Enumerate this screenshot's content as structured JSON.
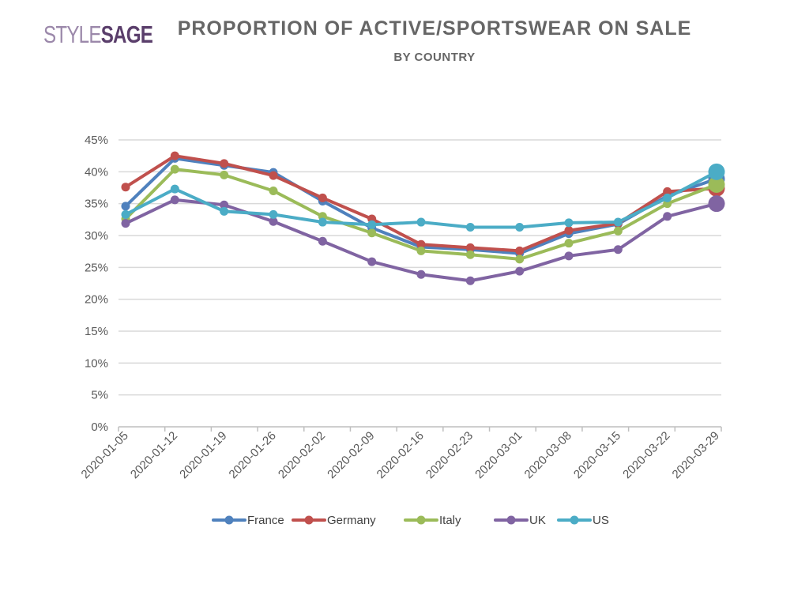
{
  "brand": {
    "logo_light": "STYLE",
    "logo_dark": "SAGE"
  },
  "header": {
    "title": "PROPORTION OF ACTIVE/SPORTSWEAR ON SALE",
    "subtitle": "BY COUNTRY"
  },
  "chart_data": {
    "type": "line",
    "title": "PROPORTION OF ACTIVE/SPORTSWEAR ON SALE",
    "subtitle": "BY COUNTRY",
    "xlabel": "",
    "ylabel": "",
    "ylim": [
      0,
      45
    ],
    "y_ticks": [
      "0%",
      "5%",
      "10%",
      "15%",
      "20%",
      "25%",
      "30%",
      "35%",
      "40%",
      "45%"
    ],
    "y_tick_values": [
      0,
      5,
      10,
      15,
      20,
      25,
      30,
      35,
      40,
      45
    ],
    "grid": true,
    "legend_position": "bottom",
    "categories": [
      "2020-01-05",
      "2020-01-12",
      "2020-01-19",
      "2020-01-26",
      "2020-02-02",
      "2020-02-09",
      "2020-02-16",
      "2020-02-23",
      "2020-03-01",
      "2020-03-08",
      "2020-03-15",
      "2020-03-22",
      "2020-03-29"
    ],
    "series": [
      {
        "name": "France",
        "color": "#4f81bd",
        "values": [
          34.6,
          42.1,
          41.0,
          39.9,
          35.4,
          31.2,
          28.2,
          27.8,
          27.2,
          30.3,
          31.8,
          36.2,
          38.9
        ]
      },
      {
        "name": "Germany",
        "color": "#c0504d",
        "values": [
          37.6,
          42.5,
          41.3,
          39.4,
          35.9,
          32.6,
          28.6,
          28.1,
          27.6,
          30.8,
          31.9,
          36.9,
          37.4
        ]
      },
      {
        "name": "Italy",
        "color": "#9bbb59",
        "values": [
          32.6,
          40.4,
          39.5,
          37.0,
          33.0,
          30.4,
          27.6,
          27.0,
          26.3,
          28.8,
          30.7,
          35.0,
          38.0
        ]
      },
      {
        "name": "UK",
        "color": "#8064a2",
        "values": [
          31.9,
          35.6,
          34.8,
          32.2,
          29.1,
          25.9,
          23.9,
          22.9,
          24.4,
          26.8,
          27.8,
          33.0,
          35.0
        ]
      },
      {
        "name": "US",
        "color": "#4bacc6",
        "values": [
          33.3,
          37.3,
          33.8,
          33.3,
          32.1,
          31.7,
          32.1,
          31.3,
          31.3,
          32.0,
          32.1,
          35.9,
          40.0
        ]
      }
    ],
    "annotations": [
      "last point of each series drawn with enlarged marker"
    ]
  }
}
